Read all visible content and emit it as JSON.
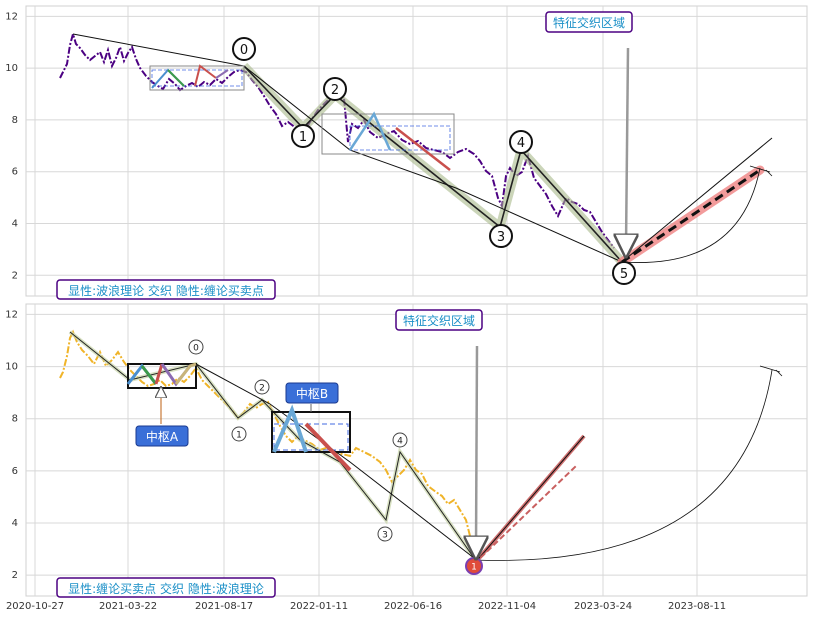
{
  "chart_data": [
    {
      "type": "line",
      "panel": "top",
      "ylim": [
        1.2,
        12.4
      ],
      "yticks": [
        "2",
        "4",
        "6",
        "8",
        "10",
        "12"
      ],
      "grid": true,
      "title_annotation": "特征交织区域",
      "caption": "显性:波浪理论 交织 隐性:缠论买卖点",
      "wave_points": [
        {
          "label": "0",
          "date": "2021-08-01",
          "value": 10.0
        },
        {
          "label": "1",
          "date": "2021-10-20",
          "value": 7.6
        },
        {
          "label": "2",
          "date": "2021-12-05",
          "value": 8.8
        },
        {
          "label": "3",
          "date": "2022-07-15",
          "value": 3.7
        },
        {
          "label": "4",
          "date": "2022-08-10",
          "value": 6.6
        },
        {
          "label": "5",
          "date": "2023-03-24",
          "value": 2.4
        }
      ],
      "price_series": [
        [
          "2020-11-01",
          9.5
        ],
        [
          "2020-11-20",
          11.2
        ],
        [
          "2020-12-15",
          10.5
        ],
        [
          "2021-01-10",
          10.0
        ],
        [
          "2021-02-05",
          10.6
        ],
        [
          "2021-03-01",
          9.8
        ],
        [
          "2021-04-01",
          9.4
        ],
        [
          "2021-05-01",
          9.6
        ],
        [
          "2021-06-01",
          9.3
        ],
        [
          "2021-07-01",
          9.6
        ],
        [
          "2021-08-01",
          9.9
        ],
        [
          "2021-09-01",
          8.8
        ],
        [
          "2021-10-01",
          8.2
        ],
        [
          "2021-10-20",
          7.7
        ],
        [
          "2021-11-15",
          8.3
        ],
        [
          "2021-12-05",
          9.1
        ],
        [
          "2022-01-01",
          7.6
        ],
        [
          "2022-01-20",
          8.2
        ],
        [
          "2022-02-15",
          7.2
        ],
        [
          "2022-03-15",
          7.0
        ],
        [
          "2022-04-15",
          7.1
        ],
        [
          "2022-05-15",
          6.6
        ],
        [
          "2022-06-15",
          6.2
        ],
        [
          "2022-07-01",
          4.8
        ],
        [
          "2022-07-20",
          3.9
        ],
        [
          "2022-08-10",
          6.4
        ],
        [
          "2022-09-01",
          5.6
        ],
        [
          "2022-10-01",
          4.9
        ],
        [
          "2022-11-01",
          4.5
        ],
        [
          "2022-12-01",
          4.6
        ],
        [
          "2023-01-01",
          3.8
        ],
        [
          "2023-02-01",
          3.0
        ],
        [
          "2023-03-01",
          2.6
        ]
      ],
      "zhongshu": [
        {
          "start": "2021-03-22",
          "end": "2021-08-01",
          "low": 9.1,
          "high": 10.0
        },
        {
          "start": "2021-12-20",
          "end": "2022-06-01",
          "low": 6.7,
          "high": 8.1
        }
      ],
      "projection": {
        "from": [
          "2023-03-24",
          2.4
        ],
        "to": [
          "2023-11-01",
          6.1
        ]
      }
    },
    {
      "type": "line",
      "panel": "bottom",
      "ylim": [
        1.2,
        12.4
      ],
      "yticks": [
        "2",
        "4",
        "6",
        "8",
        "10",
        "12"
      ],
      "xticks": [
        "2020-10-27",
        "2021-03-22",
        "2021-08-17",
        "2022-01-11",
        "2022-06-16",
        "2022-11-04",
        "2023-03-24",
        "2023-08-11"
      ],
      "grid": true,
      "title_annotation": "特征交织区域",
      "caption": "显性:缠论买卖点 交织 隐性:波浪理论",
      "zhongshu": [
        {
          "label": "中枢A",
          "start": "2021-03-22",
          "end": "2021-08-01",
          "low": 9.1,
          "high": 10.0
        },
        {
          "label": "中枢B",
          "start": "2021-10-10",
          "end": "2022-01-11",
          "low": 6.6,
          "high": 8.1
        }
      ],
      "wave_points": [
        {
          "label": "0",
          "date": "2021-08-01",
          "value": 10.0
        },
        {
          "label": "1",
          "date": "2021-10-20",
          "value": 7.6
        },
        {
          "label": "2",
          "date": "2021-12-05",
          "value": 8.8
        },
        {
          "label": "3",
          "date": "2022-06-16",
          "value": 3.9
        },
        {
          "label": "4",
          "date": "2022-07-15",
          "value": 6.6
        },
        {
          "label": "1",
          "date": "2022-10-15",
          "value": 2.4
        }
      ],
      "projection": {
        "from": [
          "2022-10-15",
          2.4
        ],
        "to": [
          "2023-01-20",
          7.2
        ]
      }
    }
  ]
}
